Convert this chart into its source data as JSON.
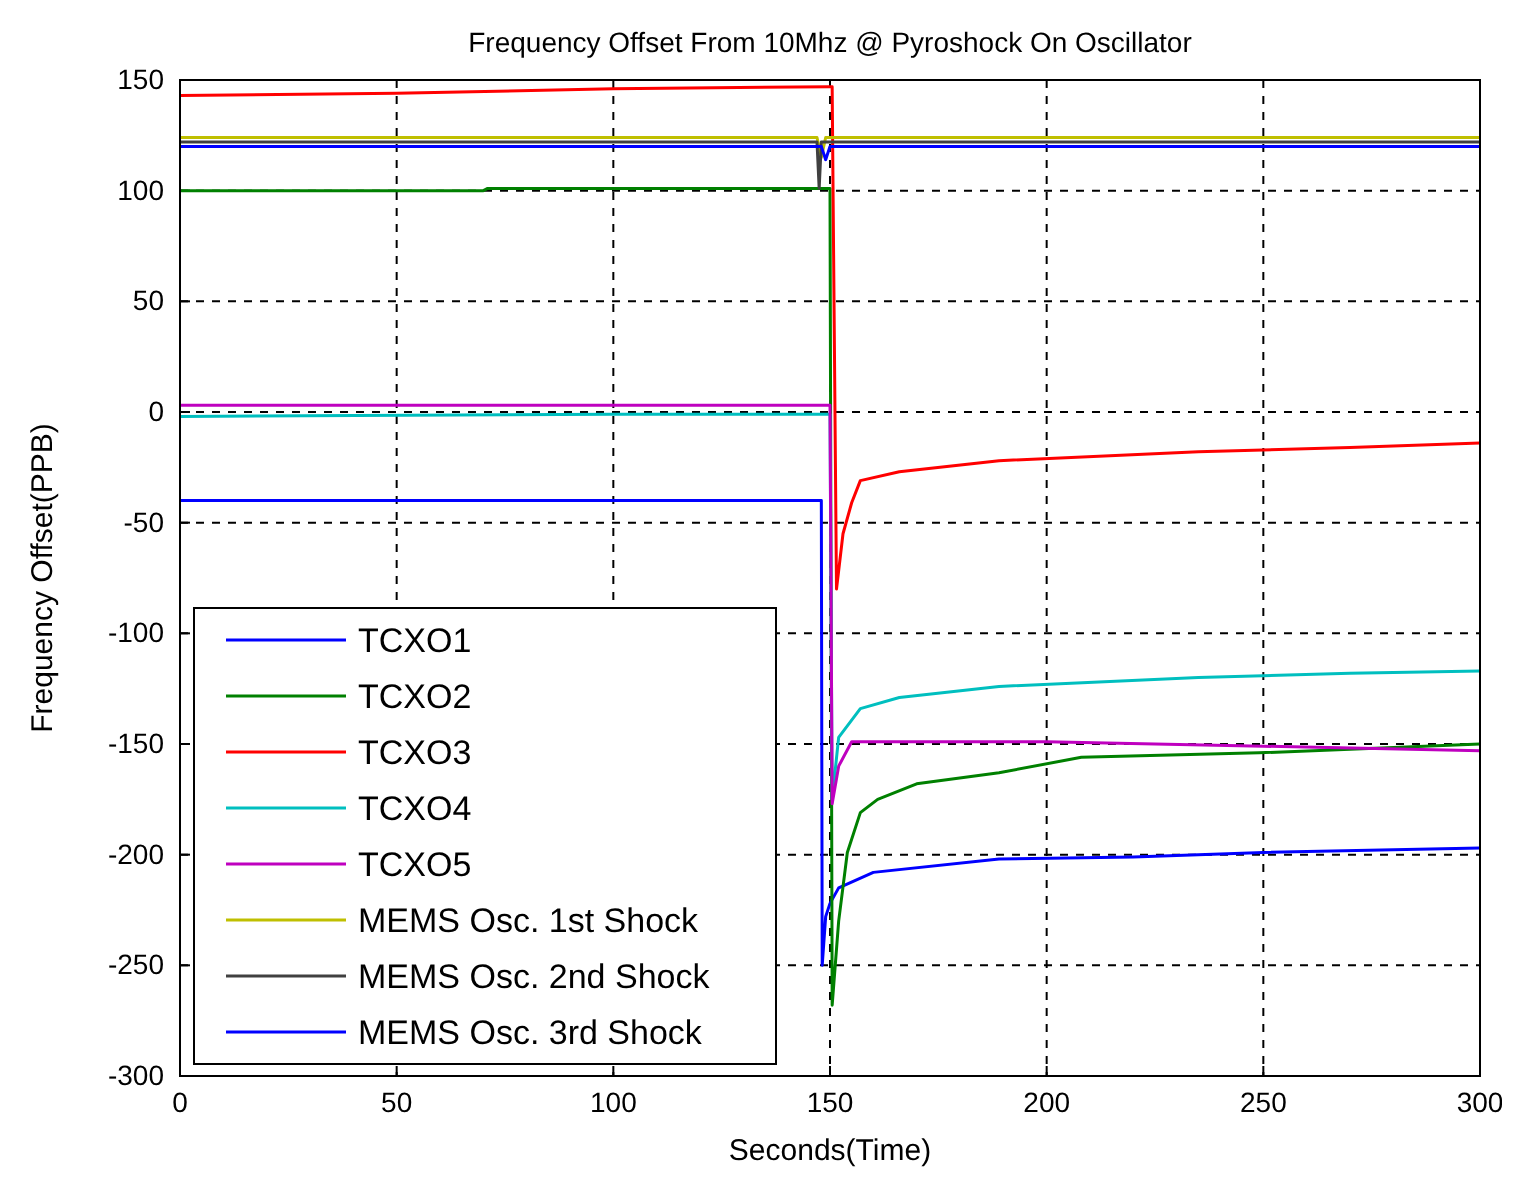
{
  "chart_data": {
    "type": "line",
    "title": "Frequency Offset From 10Mhz @ Pyroshock On Oscillator",
    "xlabel": "Seconds(Time)",
    "ylabel": "Frequency Offset(PPB)",
    "xlim": [
      0,
      300
    ],
    "ylim": [
      -300,
      150
    ],
    "xticks": [
      0,
      50,
      100,
      150,
      200,
      250,
      300
    ],
    "yticks": [
      -300,
      -250,
      -200,
      -150,
      -100,
      -50,
      0,
      50,
      100,
      150
    ],
    "grid": true,
    "legend": "bottom left",
    "line_style": "solid",
    "marker": "none",
    "series": [
      {
        "name": "TCXO1",
        "color": "#0000ff",
        "x": [
          0,
          148,
          148.2,
          149,
          150,
          152,
          160,
          189,
          220,
          250,
          300
        ],
        "values": [
          -40,
          -40,
          -250,
          -228,
          -222,
          -215,
          -208,
          -202,
          -201,
          -199,
          -197
        ]
      },
      {
        "name": "TCXO2",
        "color": "#008000",
        "x": [
          0,
          70,
          71,
          150,
          150.5,
          152,
          154,
          157,
          161,
          170,
          189,
          208,
          249,
          300
        ],
        "values": [
          100,
          100,
          101,
          101,
          -268,
          -230,
          -199,
          -181,
          -175,
          -168,
          -163,
          -156,
          -154,
          -150
        ]
      },
      {
        "name": "TCXO3",
        "color": "#ff0000",
        "x": [
          0,
          50,
          100,
          150,
          150.5,
          151.5,
          153,
          155,
          157,
          166,
          189,
          235,
          270,
          300
        ],
        "values": [
          143,
          144,
          146,
          147,
          147,
          -80,
          -55,
          -41,
          -31,
          -27,
          -22,
          -18,
          -16,
          -14
        ]
      },
      {
        "name": "TCXO4",
        "color": "#00bfbf",
        "x": [
          0,
          100,
          150,
          150.5,
          152,
          157,
          166,
          189,
          235,
          270,
          300
        ],
        "values": [
          -2,
          -1,
          -1,
          -175,
          -147,
          -134,
          -129,
          -124,
          -120,
          -118,
          -117
        ]
      },
      {
        "name": "TCXO5",
        "color": "#bf00bf",
        "x": [
          0,
          150,
          150.5,
          152,
          155,
          200,
          250,
          300
        ],
        "values": [
          3,
          3,
          -177,
          -160,
          -149,
          -149,
          -151,
          -153
        ]
      },
      {
        "name": "MEMS Osc. 1st Shock",
        "color": "#bfbf00",
        "x": [
          0,
          147,
          148,
          149,
          300
        ],
        "values": [
          124,
          124,
          115,
          124,
          124
        ]
      },
      {
        "name": "MEMS Osc. 2nd Shock",
        "color": "#404040",
        "x": [
          0,
          147,
          147.5,
          148,
          300
        ],
        "values": [
          122,
          122,
          101,
          122,
          122
        ]
      },
      {
        "name": "MEMS Osc. 3rd Shock",
        "color": "#0000ff",
        "x": [
          0,
          148,
          149,
          150,
          300
        ],
        "values": [
          120,
          120,
          114,
          120,
          120
        ]
      }
    ]
  }
}
